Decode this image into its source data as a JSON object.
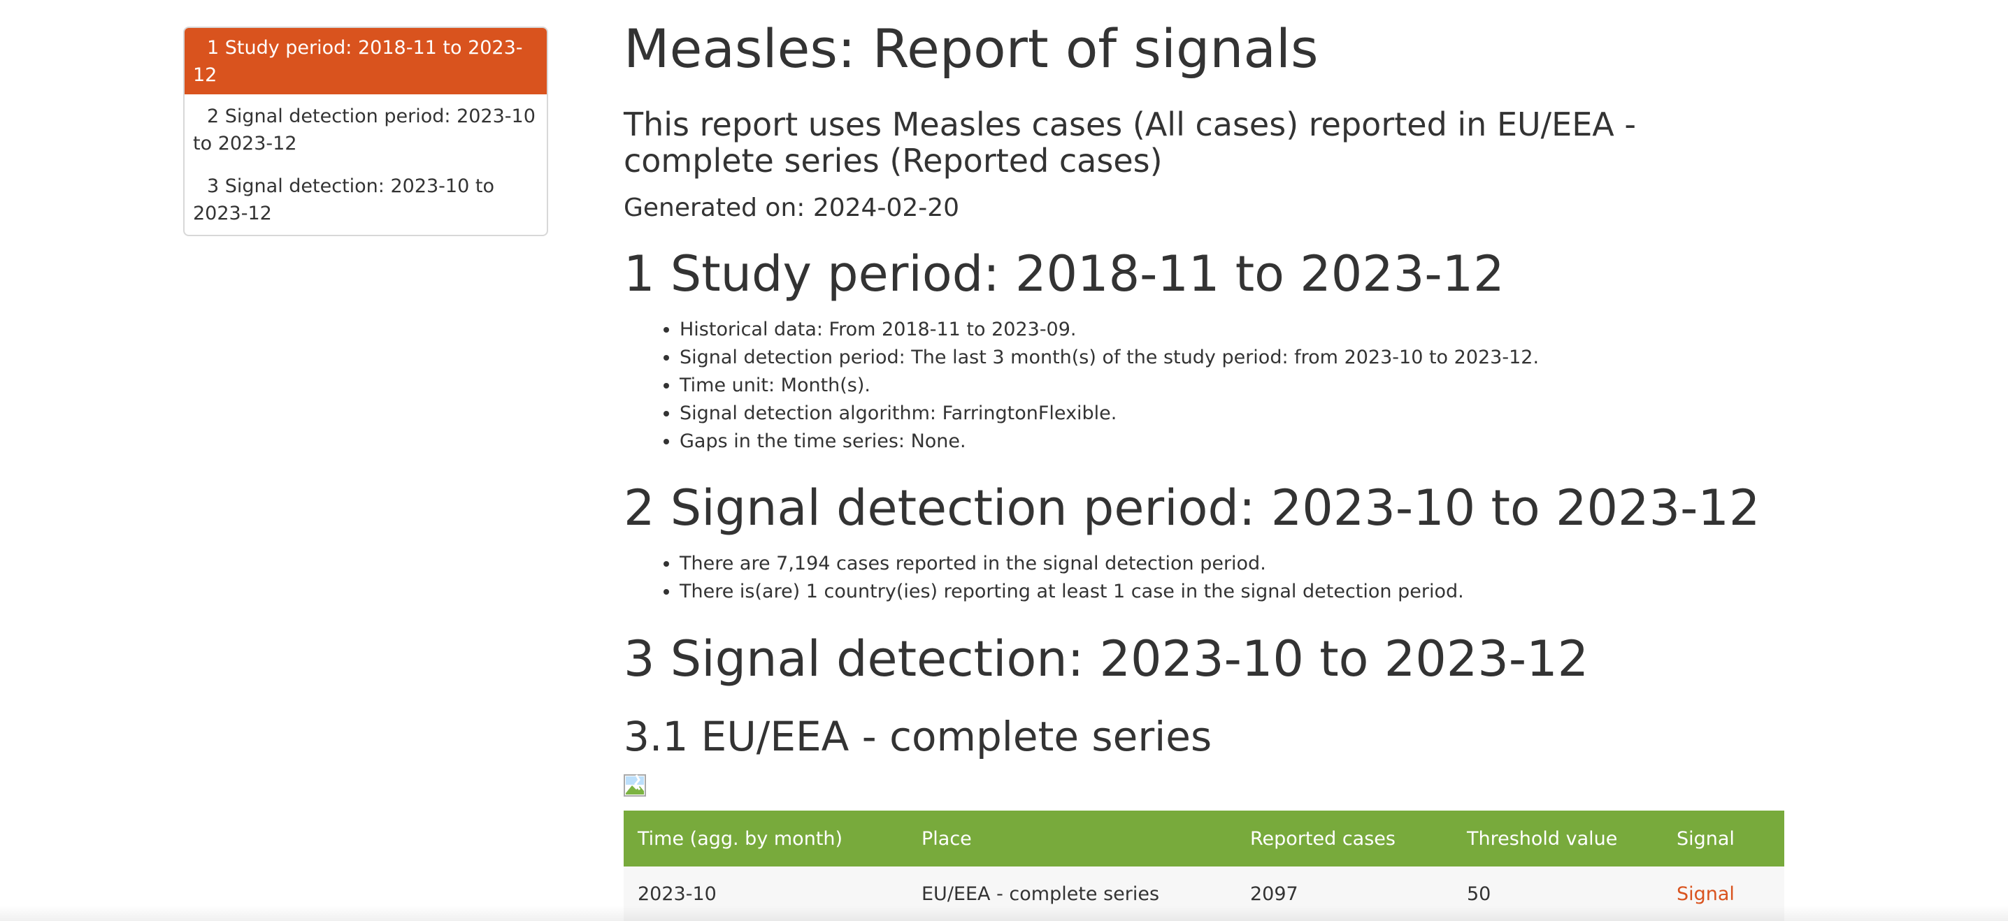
{
  "toc": {
    "items": [
      {
        "label": "1 Study period: 2018-11 to 2023-12"
      },
      {
        "label": "2 Signal detection period: 2023-10 to 2023-12"
      },
      {
        "label": "3 Signal detection: 2023-10 to 2023-12"
      }
    ],
    "active_index": 0
  },
  "report": {
    "title": "Measles: Report of signals",
    "subtitle": "This report uses Measles cases (All cases) reported in EU/EEA - complete series (Reported cases)",
    "generated": "Generated on: 2024-02-20"
  },
  "sections": {
    "study_period": {
      "heading": "1 Study period: 2018-11 to 2023-12",
      "bullets": [
        "Historical data: From 2018-11 to 2023-09.",
        "Signal detection period: The last 3 month(s) of the study period: from 2023-10 to 2023-12.",
        "Time unit: Month(s).",
        "Signal detection algorithm: FarringtonFlexible.",
        "Gaps in the time series: None."
      ]
    },
    "signal_detection_period": {
      "heading": "2 Signal detection period: 2023-10 to 2023-12",
      "bullets": [
        "There are 7,194 cases reported in the signal detection period.",
        "There is(are) 1 country(ies) reporting at least 1 case in the signal detection period."
      ]
    },
    "signal_detection": {
      "heading": "3 Signal detection: 2023-10 to 2023-12",
      "subheading": "3.1 EU/EEA - complete series"
    }
  },
  "table": {
    "headers": [
      "Time (agg. by month)",
      "Place",
      "Reported cases",
      "Threshold value",
      "Signal"
    ],
    "rows": [
      [
        "2023-10",
        "EU/EEA - complete series",
        "2097",
        "50",
        "Signal"
      ]
    ]
  },
  "colors": {
    "accent": "#d9531e",
    "table_header": "#78aa3c",
    "text": "#333333"
  }
}
